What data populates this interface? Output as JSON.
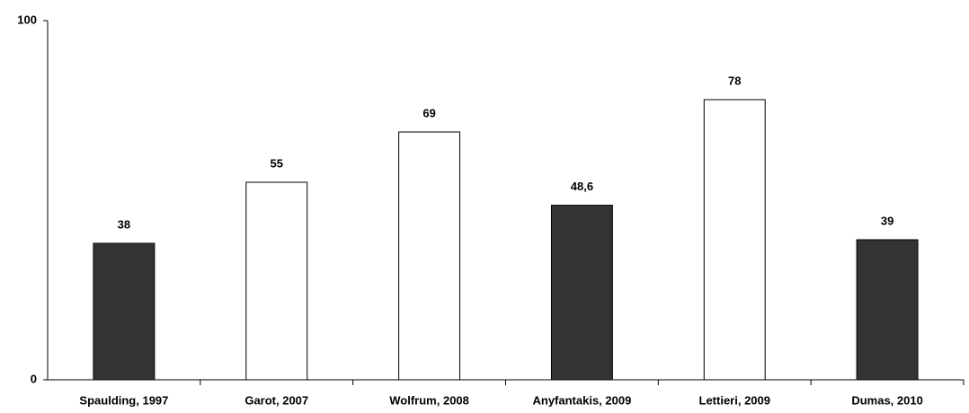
{
  "chart_data": {
    "type": "bar",
    "categories": [
      "Spaulding, 1997",
      "Garot, 2007",
      "Wolfrum, 2008",
      "Anyfantakis, 2009",
      "Lettieri, 2009",
      "Dumas, 2010"
    ],
    "values": [
      38,
      55,
      69,
      48.6,
      78,
      39
    ],
    "value_labels": [
      "38",
      "55",
      "69",
      "48,6",
      "78",
      "39"
    ],
    "colors": [
      "#333333",
      "#ffffff",
      "#ffffff",
      "#333333",
      "#ffffff",
      "#333333"
    ],
    "ylim": [
      0,
      100
    ],
    "yticks": [
      0,
      100
    ],
    "grid": false
  }
}
